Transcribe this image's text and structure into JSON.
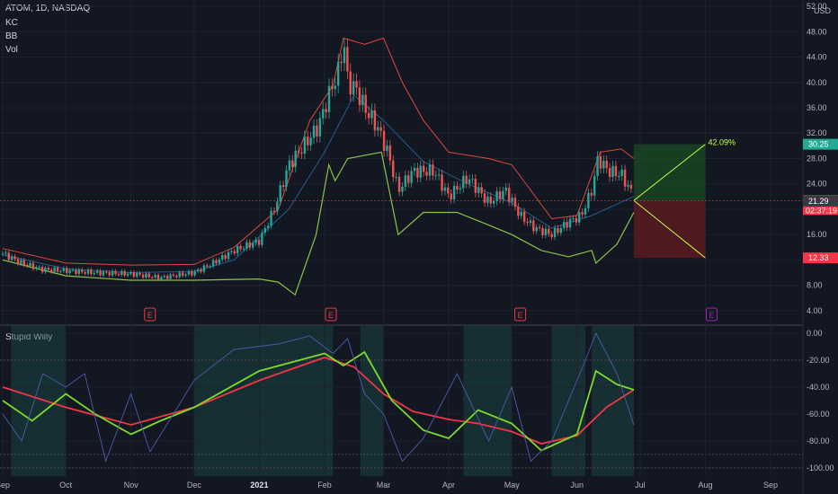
{
  "header": {
    "symbol_line": "ATOM, 1D, NASDAQ",
    "overlays": [
      "KC",
      "BB",
      "Vol"
    ],
    "currency": "USD",
    "indicator_name": "Stupid Willy"
  },
  "chart_data": [
    {
      "type": "candlestick",
      "panel": "price",
      "y_ticks": [
        4,
        8,
        12,
        16,
        20,
        24,
        28,
        32,
        36,
        40,
        44,
        48,
        52
      ],
      "y_tick_labels": [
        "4.00",
        "8.00",
        "12.00",
        "16.00",
        "20.00",
        "24.00",
        "28.00",
        "32.00",
        "36.00",
        "40.00",
        "44.00",
        "48.00",
        "52.00"
      ],
      "ylim": [
        2,
        53
      ],
      "x_tick_labels": [
        "Sep",
        "Oct",
        "Nov",
        "Dec",
        "2021",
        "Feb",
        "Mar",
        "Apr",
        "May",
        "Jun",
        "Jul",
        "Aug",
        "Sep"
      ],
      "x_tick_bold": "2021",
      "x_ticks_dates": [
        "2020-09-01",
        "2020-10-01",
        "2020-11-01",
        "2020-12-01",
        "2021-01-01",
        "2021-02-01",
        "2021-03-01",
        "2021-04-01",
        "2021-05-01",
        "2021-06-01",
        "2021-07-01",
        "2021-08-01",
        "2021-09-01"
      ],
      "close_path": [
        [
          "2020-09-01",
          13.0
        ],
        [
          "2020-09-10",
          11.5
        ],
        [
          "2020-09-20",
          10.5
        ],
        [
          "2020-10-01",
          10.3
        ],
        [
          "2020-10-15",
          10.0
        ],
        [
          "2020-11-01",
          9.8
        ],
        [
          "2020-11-15",
          9.2
        ],
        [
          "2020-12-01",
          10.0
        ],
        [
          "2020-12-10",
          11.5
        ],
        [
          "2020-12-20",
          13.5
        ],
        [
          "2021-01-01",
          15.0
        ],
        [
          "2021-01-08",
          20.0
        ],
        [
          "2021-01-15",
          27.0
        ],
        [
          "2021-01-22",
          30.0
        ],
        [
          "2021-01-29",
          33.0
        ],
        [
          "2021-02-03",
          38.0
        ],
        [
          "2021-02-08",
          42.0
        ],
        [
          "2021-02-10",
          47.0
        ],
        [
          "2021-02-12",
          40.0
        ],
        [
          "2021-02-16",
          39.0
        ],
        [
          "2021-02-20",
          36.0
        ],
        [
          "2021-02-26",
          33.0
        ],
        [
          "2021-03-03",
          29.0
        ],
        [
          "2021-03-08",
          23.0
        ],
        [
          "2021-03-15",
          26.0
        ],
        [
          "2021-03-25",
          26.0
        ],
        [
          "2021-04-01",
          22.0
        ],
        [
          "2021-04-10",
          25.0
        ],
        [
          "2021-04-20",
          21.0
        ],
        [
          "2021-04-28",
          23.0
        ],
        [
          "2021-05-05",
          19.0
        ],
        [
          "2021-05-12",
          17.0
        ],
        [
          "2021-05-20",
          16.0
        ],
        [
          "2021-05-28",
          18.0
        ],
        [
          "2021-06-03",
          19.0
        ],
        [
          "2021-06-08",
          23.0
        ],
        [
          "2021-06-11",
          28.0
        ],
        [
          "2021-06-16",
          26.0
        ],
        [
          "2021-06-22",
          25.5
        ],
        [
          "2021-06-28",
          22.0
        ]
      ],
      "bollinger_upper": [
        [
          "2020-09-01",
          13.8
        ],
        [
          "2020-10-01",
          11.5
        ],
        [
          "2020-11-01",
          11.2
        ],
        [
          "2020-12-01",
          11.3
        ],
        [
          "2020-12-20",
          14.0
        ],
        [
          "2021-01-10",
          20.0
        ],
        [
          "2021-01-25",
          34.0
        ],
        [
          "2021-02-05",
          39.5
        ],
        [
          "2021-02-10",
          47.0
        ],
        [
          "2021-02-20",
          46.0
        ],
        [
          "2021-03-01",
          47.0
        ],
        [
          "2021-03-10",
          40.0
        ],
        [
          "2021-03-20",
          34.0
        ],
        [
          "2021-04-01",
          29.0
        ],
        [
          "2021-04-20",
          28.0
        ],
        [
          "2021-05-01",
          27.0
        ],
        [
          "2021-05-20",
          18.5
        ],
        [
          "2021-06-01",
          19.0
        ],
        [
          "2021-06-12",
          29.0
        ],
        [
          "2021-06-22",
          29.5
        ],
        [
          "2021-06-28",
          28.0
        ]
      ],
      "bollinger_lower": [
        [
          "2020-09-01",
          12.0
        ],
        [
          "2020-10-01",
          9.5
        ],
        [
          "2020-11-01",
          8.8
        ],
        [
          "2020-12-01",
          8.8
        ],
        [
          "2021-01-01",
          9.0
        ],
        [
          "2021-01-10",
          8.5
        ],
        [
          "2021-01-18",
          6.5
        ],
        [
          "2021-01-28",
          16.0
        ],
        [
          "2021-02-03",
          27.0
        ],
        [
          "2021-02-06",
          24.5
        ],
        [
          "2021-02-12",
          28.0
        ],
        [
          "2021-02-28",
          29.0
        ],
        [
          "2021-03-08",
          16.0
        ],
        [
          "2021-03-20",
          19.5
        ],
        [
          "2021-04-05",
          19.5
        ],
        [
          "2021-04-20",
          17.5
        ],
        [
          "2021-05-01",
          16.0
        ],
        [
          "2021-05-15",
          13.5
        ],
        [
          "2021-05-28",
          12.5
        ],
        [
          "2021-06-08",
          13.5
        ],
        [
          "2021-06-10",
          11.5
        ],
        [
          "2021-06-20",
          14.5
        ],
        [
          "2021-06-28",
          19.5
        ]
      ],
      "keltner_mid": [
        [
          "2020-09-01",
          12.8
        ],
        [
          "2020-10-01",
          10.6
        ],
        [
          "2020-11-01",
          10.0
        ],
        [
          "2020-12-01",
          10.2
        ],
        [
          "2020-12-20",
          12.0
        ],
        [
          "2021-01-15",
          20.0
        ],
        [
          "2021-02-01",
          29.0
        ],
        [
          "2021-02-15",
          38.0
        ],
        [
          "2021-03-01",
          34.0
        ],
        [
          "2021-03-20",
          27.5
        ],
        [
          "2021-04-10",
          24.0
        ],
        [
          "2021-05-01",
          21.0
        ],
        [
          "2021-05-20",
          17.0
        ],
        [
          "2021-06-08",
          19.0
        ],
        [
          "2021-06-28",
          22.0
        ]
      ],
      "long_position": {
        "entry": 21.37,
        "target": 30.25,
        "stop": 12.33,
        "start": "2021-06-28",
        "end": "2021-08-01",
        "gain_label": "42.09%"
      },
      "price_labels": [
        {
          "value": 30.25,
          "label": "30.25",
          "color": "#22ab94"
        },
        {
          "value": 21.37,
          "label": "21.37",
          "sub": "02:37:19",
          "color": "#f23645"
        },
        {
          "value": 21.29,
          "label": "21.29",
          "color": "#363a45"
        },
        {
          "value": 12.33,
          "label": "12.33",
          "color": "#f23645"
        }
      ],
      "earnings_markers": [
        {
          "date": "2020-11-10",
          "label": "E",
          "color": "#f23645"
        },
        {
          "date": "2021-02-04",
          "label": "E",
          "color": "#f23645"
        },
        {
          "date": "2021-05-05",
          "label": "E",
          "color": "#f23645"
        },
        {
          "date": "2021-08-04",
          "label": "E",
          "color": "#9c27b0"
        }
      ]
    },
    {
      "type": "line",
      "panel": "indicator",
      "title": "Stupid Willy",
      "y_ticks": [
        0,
        -20,
        -40,
        -60,
        -80,
        -100
      ],
      "y_tick_labels": [
        "0.00",
        "-20.00",
        "-40.00",
        "-60.00",
        "-80.00",
        "-100.00"
      ],
      "ylim": [
        -106,
        6
      ],
      "series": [
        {
          "color": "#f23645",
          "values": [
            [
              "2020-09-01",
              -40
            ],
            [
              "2020-10-01",
              -55
            ],
            [
              "2020-11-01",
              -68
            ],
            [
              "2020-12-01",
              -55
            ],
            [
              "2021-01-01",
              -35
            ],
            [
              "2021-02-01",
              -18
            ],
            [
              "2021-02-15",
              -25
            ],
            [
              "2021-03-01",
              -45
            ],
            [
              "2021-03-15",
              -58
            ],
            [
              "2021-04-01",
              -64
            ],
            [
              "2021-04-15",
              -67
            ],
            [
              "2021-05-01",
              -73
            ],
            [
              "2021-05-15",
              -82
            ],
            [
              "2021-06-01",
              -76
            ],
            [
              "2021-06-15",
              -55
            ],
            [
              "2021-06-28",
              -42
            ]
          ]
        },
        {
          "color": "#7cdb2a",
          "values": [
            [
              "2020-09-01",
              -50
            ],
            [
              "2020-09-15",
              -65
            ],
            [
              "2020-10-01",
              -45
            ],
            [
              "2020-10-15",
              -60
            ],
            [
              "2020-11-01",
              -75
            ],
            [
              "2020-11-15",
              -65
            ],
            [
              "2020-12-01",
              -55
            ],
            [
              "2021-01-01",
              -28
            ],
            [
              "2021-02-01",
              -15
            ],
            [
              "2021-02-10",
              -24
            ],
            [
              "2021-02-20",
              -14
            ],
            [
              "2021-03-05",
              -50
            ],
            [
              "2021-03-20",
              -72
            ],
            [
              "2021-04-01",
              -78
            ],
            [
              "2021-04-15",
              -57
            ],
            [
              "2021-05-01",
              -67
            ],
            [
              "2021-05-15",
              -87
            ],
            [
              "2021-06-01",
              -75
            ],
            [
              "2021-06-10",
              -28
            ],
            [
              "2021-06-20",
              -38
            ],
            [
              "2021-06-28",
              -42
            ]
          ]
        },
        {
          "color": "#4a5cb0",
          "values": [
            [
              "2020-09-01",
              -60
            ],
            [
              "2020-09-10",
              -80
            ],
            [
              "2020-09-20",
              -30
            ],
            [
              "2020-10-01",
              -40
            ],
            [
              "2020-10-10",
              -30
            ],
            [
              "2020-10-20",
              -95
            ],
            [
              "2020-11-01",
              -45
            ],
            [
              "2020-11-10",
              -88
            ],
            [
              "2020-12-01",
              -35
            ],
            [
              "2020-12-20",
              -12
            ],
            [
              "2021-01-10",
              -8
            ],
            [
              "2021-01-25",
              -2
            ],
            [
              "2021-02-05",
              -15
            ],
            [
              "2021-02-12",
              -4
            ],
            [
              "2021-02-20",
              -45
            ],
            [
              "2021-03-01",
              -60
            ],
            [
              "2021-03-10",
              -95
            ],
            [
              "2021-03-20",
              -78
            ],
            [
              "2021-04-05",
              -30
            ],
            [
              "2021-04-20",
              -80
            ],
            [
              "2021-05-01",
              -40
            ],
            [
              "2021-05-10",
              -95
            ],
            [
              "2021-05-20",
              -80
            ],
            [
              "2021-06-05",
              -20
            ],
            [
              "2021-06-10",
              0
            ],
            [
              "2021-06-20",
              -30
            ],
            [
              "2021-06-28",
              -68
            ]
          ]
        }
      ]
    }
  ]
}
